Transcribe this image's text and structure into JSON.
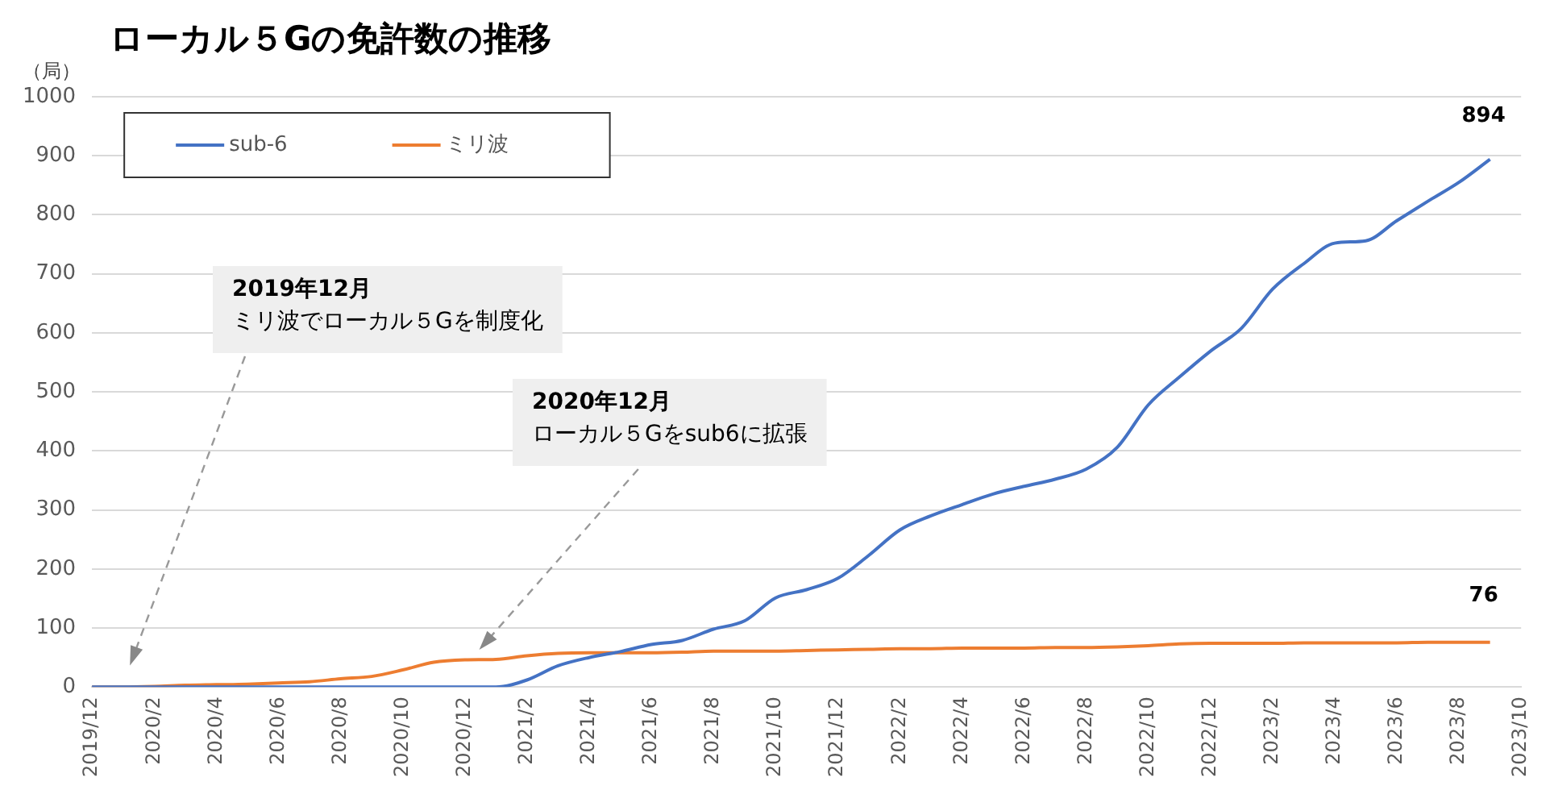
{
  "chart_data": {
    "type": "line",
    "title": "ローカル５Gの免許数の推移",
    "ylabel": "（局）",
    "categories": [
      "2019/12",
      null,
      "2020/2",
      null,
      "2020/4",
      null,
      "2020/6",
      null,
      "2020/8",
      null,
      "2020/10",
      null,
      "2020/12",
      null,
      "2021/2",
      null,
      "2021/4",
      null,
      "2021/6",
      null,
      "2021/8",
      null,
      "2021/10",
      null,
      "2021/12",
      null,
      "2022/2",
      null,
      "2022/4",
      null,
      "2022/6",
      null,
      "2022/8",
      null,
      "2022/10",
      null,
      "2022/12",
      null,
      "2023/2",
      null,
      "2023/4",
      null,
      "2023/6",
      null,
      "2023/8",
      null,
      "2023/10"
    ],
    "series": [
      {
        "name": "sub-6",
        "color": "#4472c4",
        "values": [
          0,
          0,
          0,
          0,
          0,
          0,
          0,
          0,
          0,
          0,
          0,
          0,
          0,
          0,
          12,
          36,
          50,
          60,
          72,
          79,
          98,
          112,
          151,
          165,
          184,
          223,
          266,
          290,
          309,
          327,
          340,
          352,
          369,
          406,
          478,
          525,
          569,
          608,
          674,
          717,
          752,
          756,
          790,
          823,
          855,
          894,
          null
        ],
        "value_labels": [
          null,
          null,
          null,
          null,
          null,
          null,
          null,
          null,
          null,
          null,
          null,
          null,
          null,
          null,
          null,
          null,
          null,
          null,
          null,
          null,
          null,
          null,
          null,
          null,
          null,
          null,
          null,
          null,
          null,
          null,
          null,
          null,
          null,
          null,
          null,
          null,
          null,
          null,
          null,
          null,
          null,
          null,
          null,
          null,
          null,
          "894",
          null
        ]
      },
      {
        "name": "ミリ波",
        "color": "#ed7d31",
        "values": [
          0,
          0,
          1,
          3,
          4,
          5,
          7,
          9,
          14,
          18,
          29,
          42,
          46,
          47,
          53,
          57,
          58,
          58,
          58,
          59,
          61,
          61,
          61,
          62,
          63,
          64,
          65,
          65,
          66,
          66,
          66,
          67,
          67,
          68,
          70,
          73,
          74,
          74,
          74,
          75,
          75,
          75,
          75,
          76,
          76,
          76,
          null
        ],
        "value_labels": [
          null,
          null,
          null,
          null,
          null,
          null,
          null,
          null,
          null,
          null,
          null,
          null,
          null,
          null,
          null,
          null,
          null,
          null,
          null,
          null,
          null,
          null,
          null,
          null,
          null,
          null,
          null,
          null,
          null,
          null,
          null,
          null,
          null,
          null,
          null,
          null,
          null,
          null,
          null,
          null,
          null,
          null,
          null,
          null,
          null,
          "76",
          null
        ]
      }
    ],
    "ylim": [
      0,
      1000
    ],
    "yticks": [
      0,
      100,
      200,
      300,
      400,
      500,
      600,
      700,
      800,
      900,
      1000
    ],
    "grid": "y",
    "legend": "top left",
    "marker": "none",
    "line_style": "solid",
    "annotations": [
      "2019年12月",
      "ミリ波でローカル５Gを制度化",
      "2020年12月",
      "ローカル５Gをsub6に拡張"
    ]
  }
}
